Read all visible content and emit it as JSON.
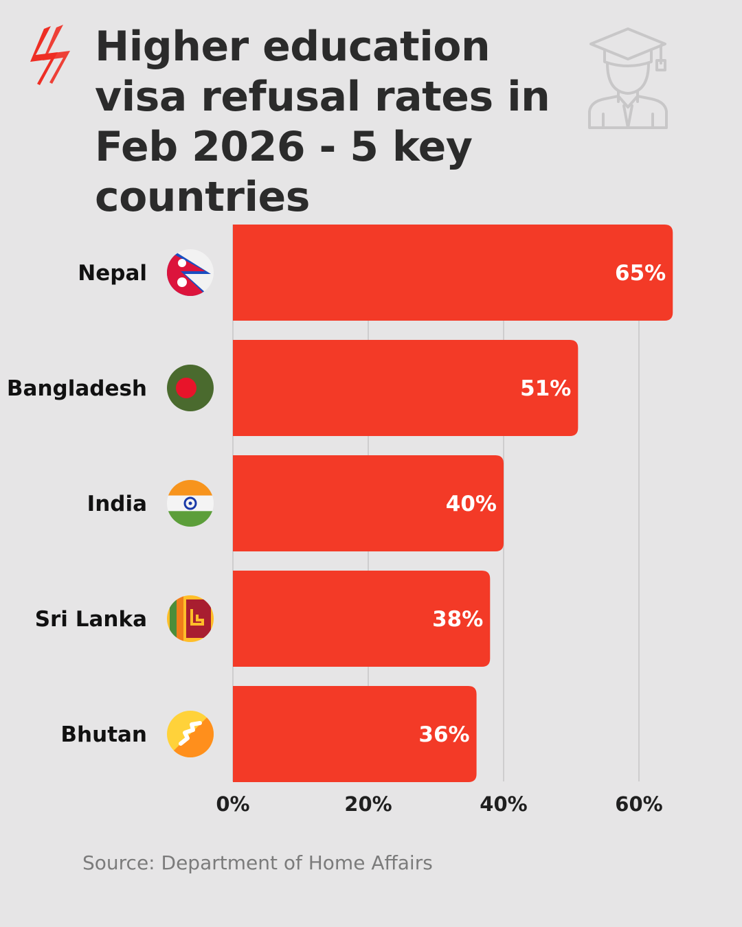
{
  "header": {
    "title": "Higher education visa refusal rates in Feb 2026 - 5 key countries"
  },
  "footer": {
    "source": "Source: Department of Home Affairs"
  },
  "colors": {
    "bar": "#f33a27",
    "background": "#e6e5e6",
    "title": "#2b2b2b",
    "grid": "#c6c5c6",
    "logo": "#ee2e24"
  },
  "icons": [
    "sbs-logo-icon",
    "graduate-icon",
    "nepal-flag-icon",
    "bangladesh-flag-icon",
    "india-flag-icon",
    "sri-lanka-flag-icon",
    "bhutan-flag-icon"
  ],
  "chart_data": {
    "type": "bar",
    "orientation": "horizontal",
    "categories": [
      "Nepal",
      "Bangladesh",
      "India",
      "Sri Lanka",
      "Bhutan"
    ],
    "values": [
      65,
      51,
      40,
      38,
      36
    ],
    "data_labels": [
      "65%",
      "51%",
      "40%",
      "38%",
      "36%"
    ],
    "title": "Higher education visa refusal rates in Feb 2026 - 5 key countries",
    "xlabel": "",
    "ylabel": "",
    "xlim": [
      0,
      65
    ],
    "x_ticks": [
      0,
      20,
      40,
      60
    ],
    "x_tick_labels": [
      "0%",
      "20%",
      "40%",
      "60%"
    ],
    "grid": true,
    "legend": "none"
  }
}
